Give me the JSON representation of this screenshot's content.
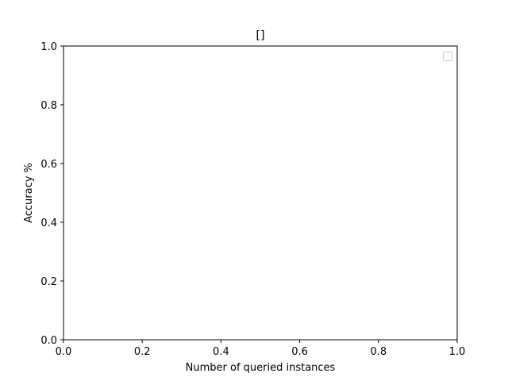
{
  "chart_data": {
    "type": "line",
    "title": "[]",
    "xlabel": "Number of queried instances",
    "ylabel": "Accuracy %",
    "xlim": [
      0.0,
      1.0
    ],
    "ylim": [
      0.0,
      1.0
    ],
    "xticks": [
      "0.0",
      "0.2",
      "0.4",
      "0.6",
      "0.8",
      "1.0"
    ],
    "yticks": [
      "0.0",
      "0.2",
      "0.4",
      "0.6",
      "0.8",
      "1.0"
    ],
    "series": [],
    "legend": {
      "position": "top-right",
      "entries": []
    },
    "grid": false
  }
}
